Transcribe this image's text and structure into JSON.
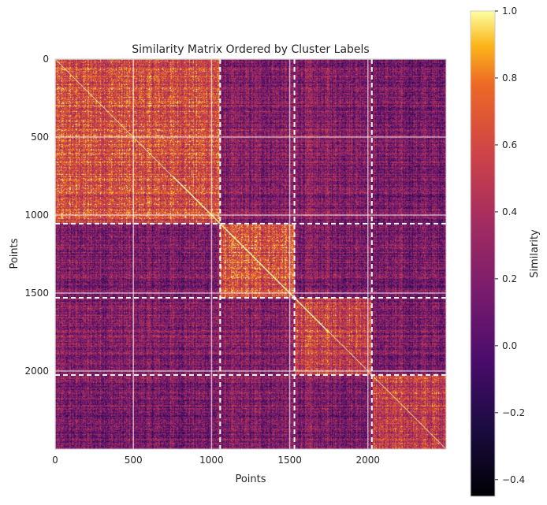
{
  "chart_data": {
    "type": "heatmap",
    "title": "Similarity Matrix Ordered by Cluster Labels",
    "xlabel": "Points",
    "ylabel": "Points",
    "n_points": 2500,
    "xlim": [
      0,
      2500
    ],
    "ylim": [
      2500,
      0
    ],
    "x_ticks": [
      0,
      500,
      1000,
      1500,
      2000
    ],
    "y_ticks": [
      0,
      500,
      1000,
      1500,
      2000
    ],
    "cluster_boundaries": [
      1055,
      1530,
      2025
    ],
    "cluster_ranges": [
      [
        0,
        1055
      ],
      [
        1055,
        1530
      ],
      [
        1530,
        2025
      ],
      [
        2025,
        2500
      ]
    ],
    "mean_similarity": [
      [
        0.6,
        0.2,
        0.22,
        0.15
      ],
      [
        0.2,
        0.65,
        0.22,
        0.18
      ],
      [
        0.22,
        0.22,
        0.55,
        0.18
      ],
      [
        0.15,
        0.18,
        0.18,
        0.5
      ]
    ],
    "diagonal_value": 1.0,
    "colormap": "inferno",
    "colorbar": {
      "label": "Similarity",
      "vmin": -0.45,
      "vmax": 1.0,
      "ticks": [
        1.0,
        0.8,
        0.6,
        0.4,
        0.2,
        0.0,
        -0.2,
        -0.4
      ],
      "tick_labels": [
        "1.0",
        "0.8",
        "0.6",
        "0.4",
        "0.2",
        "0.0",
        "−0.2",
        "−0.4"
      ]
    },
    "grid": true,
    "boundary_line_style": "dashed white"
  }
}
